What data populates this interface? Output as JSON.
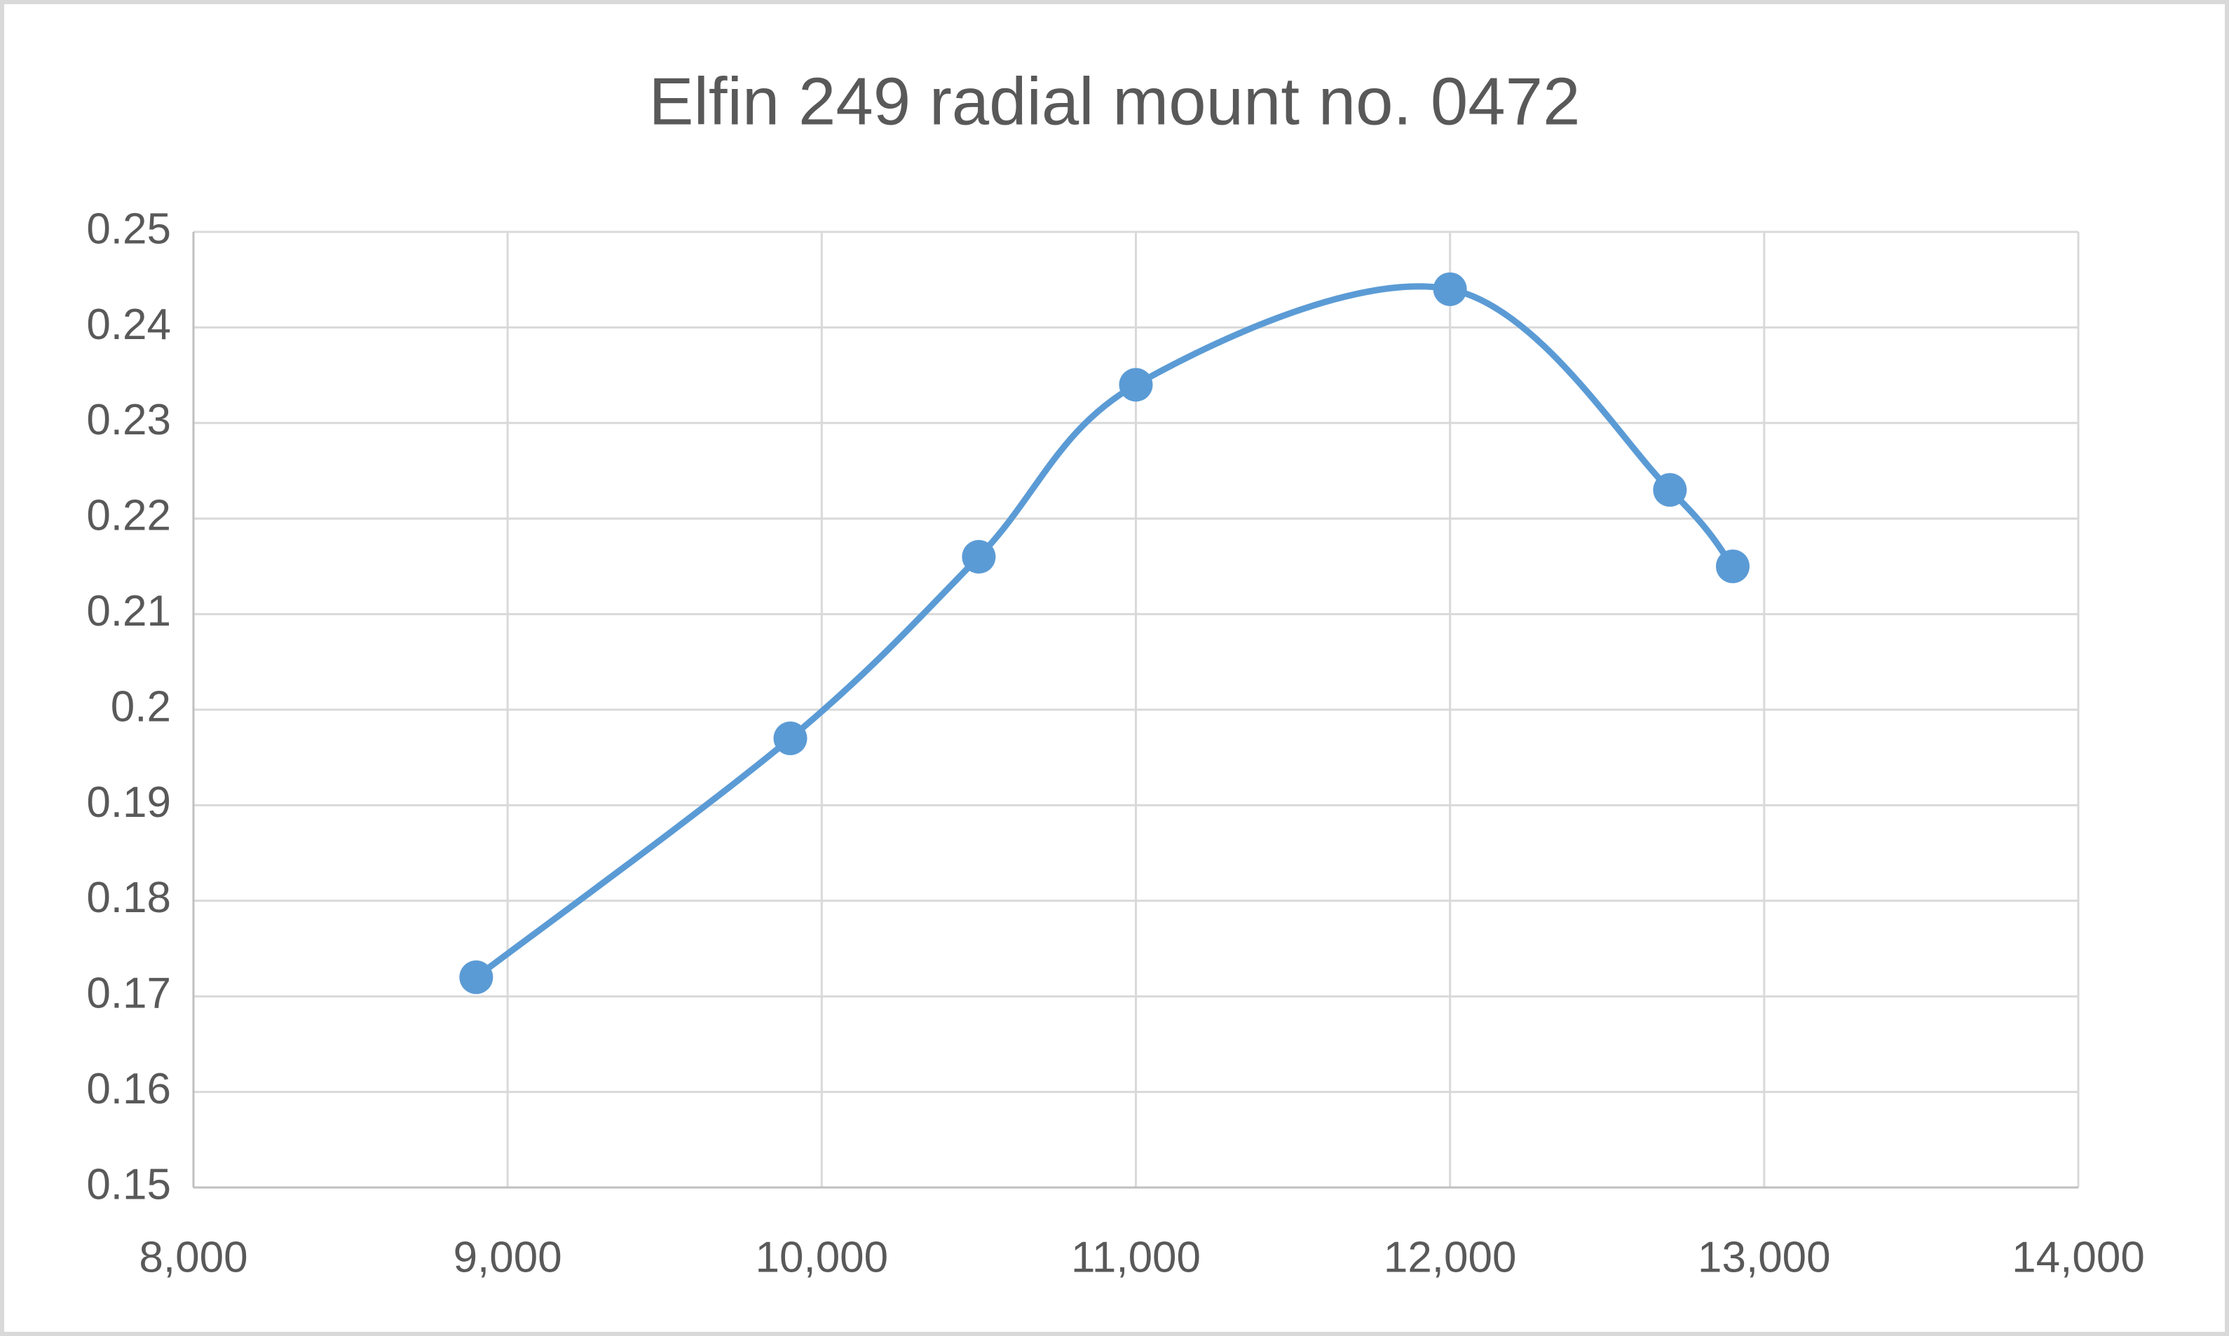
{
  "chart_data": {
    "type": "scatter",
    "title": "Elfin 249 radial mount no. 0472",
    "x": [
      8900,
      9900,
      10500,
      11000,
      12000,
      12700,
      12900
    ],
    "series": [
      {
        "color": "#5b9bd5",
        "values": [
          0.172,
          0.197,
          0.216,
          0.234,
          0.244,
          0.223,
          0.215
        ]
      }
    ],
    "smooth": true,
    "markers": true,
    "grid": true,
    "xlim": [
      8000,
      14000
    ],
    "xticks": [
      {
        "value": 8000,
        "label": "8,000"
      },
      {
        "value": 9000,
        "label": "9,000"
      },
      {
        "value": 10000,
        "label": "10,000"
      },
      {
        "value": 11000,
        "label": "11,000"
      },
      {
        "value": 12000,
        "label": "12,000"
      },
      {
        "value": 13000,
        "label": "13,000"
      },
      {
        "value": 14000,
        "label": "14,000"
      }
    ],
    "ylim": [
      0.15,
      0.25
    ],
    "yticks": [
      0.15,
      0.16,
      0.17,
      0.18,
      0.19,
      0.2,
      0.21,
      0.22,
      0.23,
      0.24,
      0.25
    ]
  }
}
